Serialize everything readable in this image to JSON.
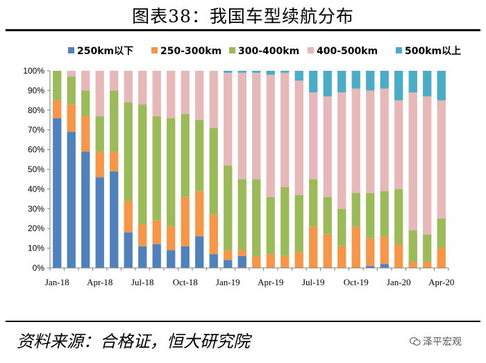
{
  "title": "图表38：我国车型续航分布",
  "source": "资料来源：合格证，恒大研究院",
  "watermark": "泽平宏观",
  "colors": {
    "series": [
      "#4F81BD",
      "#F79646",
      "#9BBB59",
      "#E6B8B7",
      "#4BACC6"
    ]
  },
  "chart_data": {
    "type": "bar",
    "stacked": true,
    "title": "",
    "xlabel": "",
    "ylabel": "",
    "ylim": [
      0,
      100
    ],
    "y_ticks": [
      "0%",
      "10%",
      "20%",
      "30%",
      "40%",
      "50%",
      "60%",
      "70%",
      "80%",
      "90%",
      "100%"
    ],
    "x_tick_labels": [
      "Jan-18",
      "Apr-18",
      "Jul-18",
      "Oct-18",
      "Jan-19",
      "Apr-19",
      "Jul-19",
      "Oct-19",
      "Jan-20",
      "Apr-20"
    ],
    "x_tick_every": 3,
    "legend_position": "top",
    "categories": [
      "Jan-18",
      "Feb-18",
      "Mar-18",
      "Apr-18",
      "May-18",
      "Jun-18",
      "Jul-18",
      "Aug-18",
      "Sep-18",
      "Oct-18",
      "Nov-18",
      "Dec-18",
      "Jan-19",
      "Feb-19",
      "Mar-19",
      "Apr-19",
      "May-19",
      "Jun-19",
      "Jul-19",
      "Aug-19",
      "Sep-19",
      "Oct-19",
      "Nov-19",
      "Dec-19",
      "Jan-20",
      "Feb-20",
      "Mar-20",
      "Apr-20"
    ],
    "series": [
      {
        "name": "250km以下",
        "values": [
          76,
          69,
          59,
          46,
          49,
          18,
          11,
          12,
          9,
          11,
          16,
          7,
          4,
          6,
          0,
          0,
          0,
          0,
          0,
          0,
          0,
          0,
          1,
          2,
          0,
          0,
          0,
          0
        ]
      },
      {
        "name": "250-300km",
        "values": [
          9,
          14,
          18,
          13,
          10,
          16,
          11,
          12,
          12,
          25,
          23,
          20,
          5,
          3,
          6,
          7,
          6,
          8,
          21,
          17,
          11,
          21,
          14,
          14,
          12,
          3,
          3,
          10
        ]
      },
      {
        "name": "300-400km",
        "values": [
          15,
          14,
          13,
          18,
          31,
          50,
          61,
          53,
          55,
          42,
          36,
          44,
          43,
          36,
          39,
          29,
          35,
          29,
          24,
          19,
          19,
          17,
          23,
          23,
          28,
          16,
          14,
          15
        ]
      },
      {
        "name": "400-500km",
        "values": [
          0,
          3,
          10,
          23,
          10,
          16,
          17,
          23,
          24,
          22,
          25,
          29,
          47,
          54,
          54,
          62,
          58,
          58,
          44,
          51,
          59,
          53,
          52,
          52,
          45,
          70,
          70,
          60
        ]
      },
      {
        "name": "500km以上",
        "values": [
          0,
          0,
          0,
          0,
          0,
          0,
          0,
          0,
          0,
          0,
          0,
          0,
          1,
          1,
          1,
          2,
          1,
          5,
          11,
          13,
          11,
          9,
          10,
          9,
          15,
          11,
          13,
          15
        ]
      }
    ]
  }
}
